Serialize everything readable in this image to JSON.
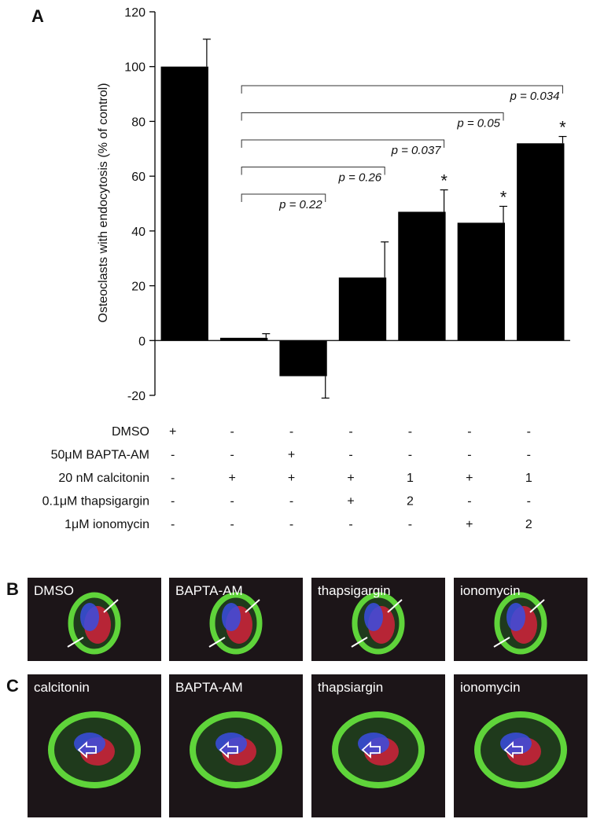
{
  "chart_data": {
    "type": "bar",
    "panel_label": "A",
    "y_label": "Osteoclasts with endocytosis (% of control)",
    "values": [
      100,
      1,
      -13,
      23,
      47,
      43,
      72
    ],
    "errors": [
      10,
      1.5,
      8,
      13,
      8,
      6,
      2.5
    ],
    "markers": [
      null,
      null,
      null,
      null,
      "*",
      "*",
      "*"
    ],
    "comparisons": [
      null,
      null,
      "p = 0.22",
      "p = 0.26",
      "p = 0.037",
      "p = 0.05",
      "p = 0.034"
    ],
    "color": "#000000",
    "ylim": [
      -20,
      120
    ],
    "yticks": [
      -20,
      0,
      20,
      40,
      60,
      80,
      100,
      120
    ]
  },
  "table": {
    "rows": [
      {
        "label": "DMSO",
        "cells": [
          "+",
          "-",
          "-",
          "-",
          "-",
          "-",
          "-"
        ]
      },
      {
        "label": "50μM BAPTA-AM",
        "cells": [
          "-",
          "-",
          "+",
          "-",
          "-",
          "-",
          "-"
        ]
      },
      {
        "label": "20 nM calcitonin",
        "cells": [
          "-",
          "+",
          "+",
          "+",
          "1",
          "+",
          "1"
        ]
      },
      {
        "label": "0.1μM thapsigargin",
        "cells": [
          "-",
          "-",
          "-",
          "+",
          "2",
          "-",
          "-"
        ]
      },
      {
        "label": "1μM ionomycin",
        "cells": [
          "-",
          "-",
          "-",
          "-",
          "-",
          "+",
          "2"
        ]
      }
    ]
  },
  "panel_b": {
    "label": "B",
    "images": [
      "DMSO",
      "BAPTA-AM",
      "thapsigargin",
      "ionomycin"
    ]
  },
  "panel_c": {
    "label": "C",
    "images": [
      "calcitonin",
      "BAPTA-AM",
      "thapsiargin",
      "ionomycin"
    ]
  }
}
